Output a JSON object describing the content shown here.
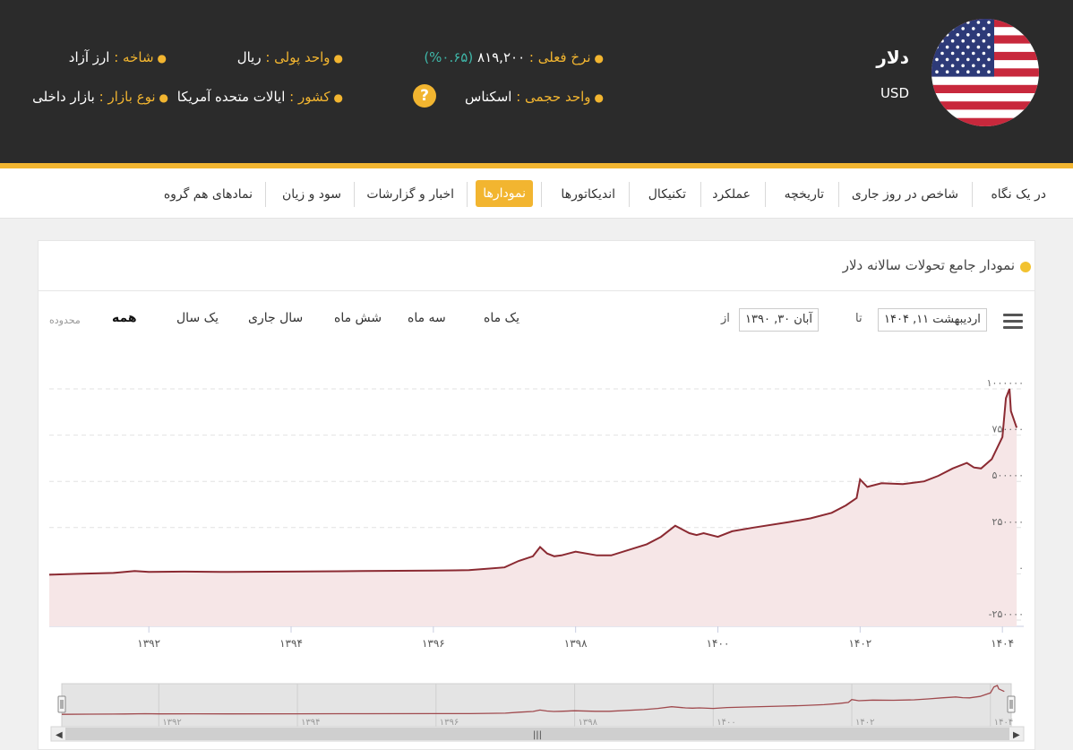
{
  "header": {
    "currency_name": "دلار",
    "currency_code": "USD",
    "rate_label": "نرخ فعلی :",
    "rate_value": "۸۱۹,۲۰۰",
    "rate_change": "(۰.۶۵%)",
    "monetary_unit_label": "واحد پولی :",
    "monetary_unit_value": "ریال",
    "branch_label": "شاخه :",
    "branch_value": "ارز آزاد",
    "volume_unit_label": "واحد حجمی :",
    "volume_unit_value": "اسکناس",
    "country_label": "کشور :",
    "country_value": "ایالات متحده آمریکا",
    "market_type_label": "نوع بازار :",
    "market_type_value": "بازار داخلی",
    "help_icon": "question-circle-icon",
    "colors": {
      "header_bg": "#2b2b2b",
      "accent": "#f2b530",
      "change": "#3fb6a8"
    }
  },
  "tabs": [
    {
      "label": "در یک نگاه",
      "active": false
    },
    {
      "label": "شاخص در روز جاری",
      "active": false
    },
    {
      "label": "تاریخچه",
      "active": false
    },
    {
      "label": "عملکرد",
      "active": false
    },
    {
      "label": "تکنیکال",
      "active": false
    },
    {
      "label": "اندیکاتورها",
      "active": false
    },
    {
      "label": "نمودارها",
      "active": true
    },
    {
      "label": "اخبار و گزارشات",
      "active": false
    },
    {
      "label": "سود و زیان",
      "active": false
    },
    {
      "label": "نمادهای هم گروه",
      "active": false
    }
  ],
  "chart_panel": {
    "title": "نمودار جامع تحولات سالانه دلار",
    "range_label": "محدوده",
    "ranges": [
      "همه",
      "یک سال",
      "سال جاری",
      "شش ماه",
      "سه ماه",
      "یک ماه"
    ],
    "from_label": "از",
    "from_date": "آبان ۳۰, ۱۳۹۰",
    "to_label": "تا",
    "to_date": "اردیبهشت ۱۱, ۱۴۰۴",
    "menu_icon": "hamburger-menu-icon"
  },
  "chart_data": {
    "type": "area",
    "x_unit": "solar year",
    "xlim": [
      1390.6,
      1404.3
    ],
    "ylim": [
      -250000,
      1000000
    ],
    "y_ticks": [
      "۱۰۰۰۰۰۰",
      "۷۵۰۰۰۰",
      "۵۰۰۰۰۰",
      "۲۵۰۰۰۰",
      "۰",
      "-۲۵۰۰۰۰"
    ],
    "y_tick_values": [
      1000000,
      750000,
      500000,
      250000,
      0,
      -250000
    ],
    "x_ticks": [
      "۱۳۹۲",
      "۱۳۹۴",
      "۱۳۹۶",
      "۱۳۹۸",
      "۱۴۰۰",
      "۱۴۰۲",
      "۱۴۰۴"
    ],
    "x_tick_values": [
      1392,
      1394,
      1396,
      1398,
      1400,
      1402,
      1404
    ],
    "navigator_ticks": [
      "۱۳۹۲",
      "۱۳۹۴",
      "۱۳۹۶",
      "۱۳۹۸",
      "۱۴۰۰",
      "۱۴۰۲",
      "۱۴۰۴"
    ],
    "grid": true,
    "series_color": "#8b2a32",
    "fill_color": "#f6e6e7",
    "x": [
      1390.6,
      1391.0,
      1391.5,
      1391.8,
      1392.0,
      1392.5,
      1393.0,
      1394.0,
      1395.0,
      1396.0,
      1396.5,
      1397.0,
      1397.2,
      1397.4,
      1397.5,
      1397.6,
      1397.7,
      1397.8,
      1398.0,
      1398.3,
      1398.5,
      1399.0,
      1399.2,
      1399.4,
      1399.6,
      1399.7,
      1399.8,
      1400.0,
      1400.2,
      1400.5,
      1401.0,
      1401.3,
      1401.6,
      1401.8,
      1401.95,
      1402.0,
      1402.1,
      1402.3,
      1402.6,
      1402.9,
      1403.1,
      1403.3,
      1403.5,
      1403.6,
      1403.7,
      1403.85,
      1404.0,
      1404.05,
      1404.1,
      1404.12,
      1404.2
    ],
    "values": [
      -5000,
      0,
      5000,
      15000,
      10000,
      12000,
      10000,
      12000,
      15000,
      18000,
      20000,
      35000,
      70000,
      95000,
      145000,
      110000,
      95000,
      100000,
      120000,
      100000,
      100000,
      160000,
      200000,
      260000,
      220000,
      210000,
      220000,
      200000,
      230000,
      250000,
      280000,
      300000,
      330000,
      370000,
      410000,
      510000,
      470000,
      490000,
      485000,
      500000,
      530000,
      570000,
      600000,
      575000,
      570000,
      620000,
      740000,
      950000,
      1000000,
      880000,
      790000
    ]
  }
}
